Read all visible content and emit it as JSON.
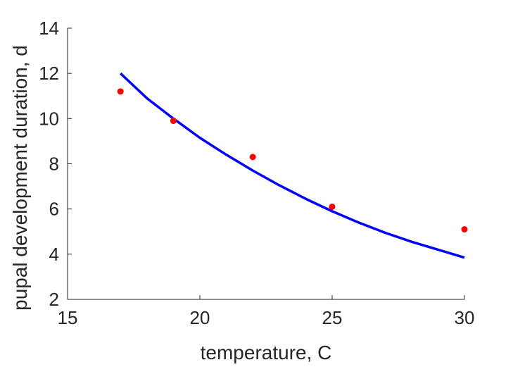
{
  "chart_data": {
    "type": "scatter",
    "title": "",
    "xlabel": "temperature, C",
    "ylabel": "pupal development duration, d",
    "xlim": [
      15,
      30
    ],
    "ylim": [
      2,
      14
    ],
    "xticks": [
      15,
      20,
      25,
      30
    ],
    "yticks": [
      2,
      4,
      6,
      8,
      10,
      12,
      14
    ],
    "grid": false,
    "series": [
      {
        "type": "scatter",
        "color": "#ff0000",
        "x": [
          17,
          19,
          22,
          25,
          30
        ],
        "y": [
          11.2,
          9.9,
          8.3,
          6.1,
          5.1
        ]
      },
      {
        "type": "line",
        "color": "#0000ff",
        "x": [
          17,
          18,
          19,
          20,
          21,
          22,
          23,
          24,
          25,
          26,
          27,
          28,
          29,
          30
        ],
        "y": [
          12.0,
          10.9,
          10.0,
          9.15,
          8.4,
          7.7,
          7.05,
          6.45,
          5.9,
          5.4,
          4.95,
          4.55,
          4.2,
          3.85
        ]
      }
    ]
  }
}
